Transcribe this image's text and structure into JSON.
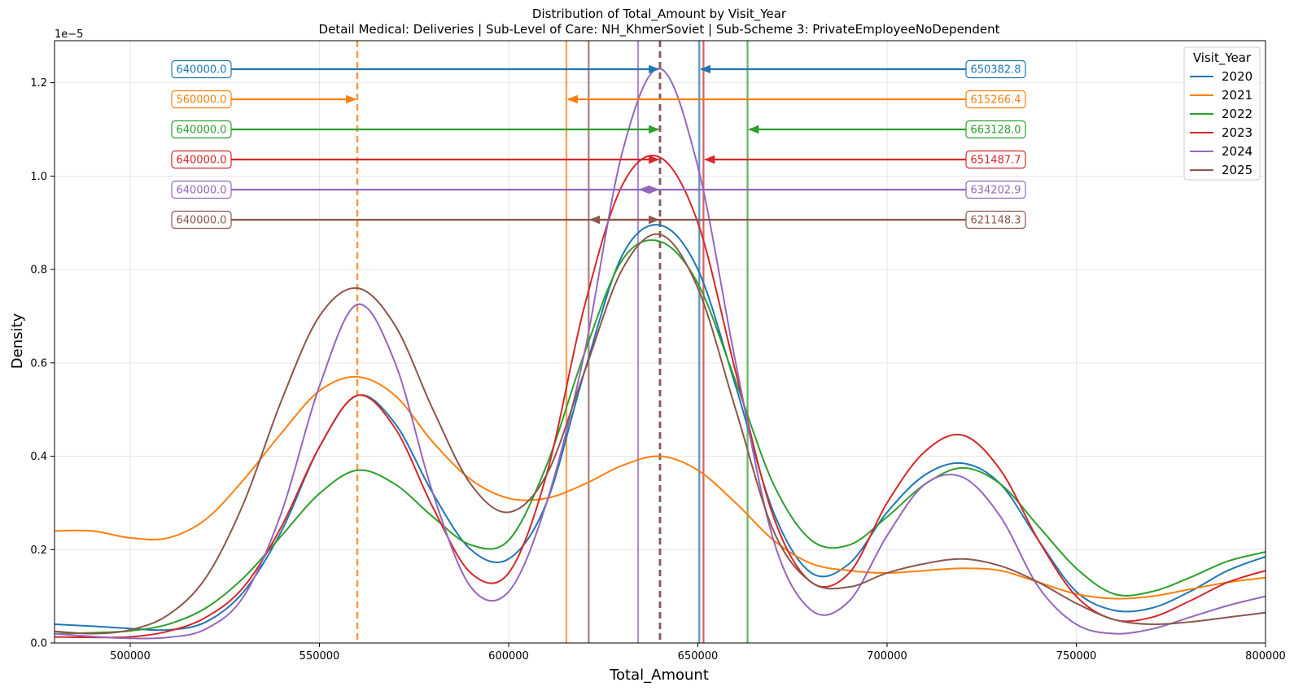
{
  "chart_data": {
    "type": "line",
    "title": "Distribution of Total_Amount by Visit_Year",
    "subtitle": "Detail Medical: Deliveries | Sub-Level of Care: NH_KhmerSoviet | Sub-Scheme 3: PrivateEmployeeNoDependent",
    "xlabel": "Total_Amount",
    "ylabel": "Density",
    "y_offset_text": "1e−5",
    "xlim": [
      480000,
      800000
    ],
    "ylim": [
      0,
      1.29
    ],
    "xticks": [
      500000,
      550000,
      600000,
      650000,
      700000,
      750000,
      800000
    ],
    "xtick_labels": [
      "500000",
      "550000",
      "600000",
      "650000",
      "700000",
      "750000",
      "800000"
    ],
    "yticks": [
      0.0,
      0.2,
      0.4,
      0.6,
      0.8,
      1.0,
      1.2
    ],
    "ytick_labels": [
      "0.0",
      "0.2",
      "0.4",
      "0.6",
      "0.8",
      "1.0",
      "1.2"
    ],
    "grid": true,
    "legend": {
      "title": "Visit_Year",
      "position": "top-right"
    },
    "series": [
      {
        "name": "2020",
        "color": "#1f77b4",
        "median": 640000.0,
        "mean": 650382.8,
        "median_label": "640000.0",
        "mean_label": "650382.8",
        "x": [
          480000,
          490000,
          500000,
          510000,
          520000,
          530000,
          540000,
          550000,
          560000,
          570000,
          580000,
          590000,
          600000,
          610000,
          620000,
          630000,
          640000,
          650000,
          660000,
          670000,
          680000,
          690000,
          700000,
          710000,
          720000,
          730000,
          740000,
          750000,
          760000,
          770000,
          780000,
          790000,
          800000
        ],
        "y": [
          0.04,
          0.036,
          0.031,
          0.028,
          0.045,
          0.11,
          0.24,
          0.42,
          0.53,
          0.47,
          0.32,
          0.2,
          0.18,
          0.3,
          0.58,
          0.83,
          0.895,
          0.8,
          0.55,
          0.28,
          0.15,
          0.17,
          0.28,
          0.36,
          0.385,
          0.34,
          0.22,
          0.11,
          0.07,
          0.075,
          0.11,
          0.155,
          0.185
        ]
      },
      {
        "name": "2021",
        "color": "#ff7f0e",
        "median": 560000.0,
        "mean": 615266.4,
        "median_label": "560000.0",
        "mean_label": "615266.4",
        "x": [
          480000,
          490000,
          500000,
          510000,
          520000,
          530000,
          540000,
          550000,
          560000,
          570000,
          580000,
          590000,
          600000,
          610000,
          620000,
          630000,
          640000,
          650000,
          660000,
          670000,
          680000,
          690000,
          700000,
          710000,
          720000,
          730000,
          740000,
          750000,
          760000,
          770000,
          780000,
          790000,
          800000
        ],
        "y": [
          0.24,
          0.24,
          0.225,
          0.225,
          0.265,
          0.35,
          0.45,
          0.54,
          0.57,
          0.53,
          0.43,
          0.35,
          0.31,
          0.31,
          0.34,
          0.38,
          0.4,
          0.37,
          0.3,
          0.22,
          0.17,
          0.155,
          0.15,
          0.155,
          0.16,
          0.155,
          0.13,
          0.105,
          0.095,
          0.1,
          0.115,
          0.13,
          0.14
        ]
      },
      {
        "name": "2022",
        "color": "#2ca02c",
        "median": 640000.0,
        "mean": 663128.0,
        "median_label": "640000.0",
        "mean_label": "663128.0",
        "x": [
          480000,
          490000,
          500000,
          510000,
          520000,
          530000,
          540000,
          550000,
          560000,
          570000,
          580000,
          590000,
          600000,
          610000,
          620000,
          630000,
          640000,
          650000,
          660000,
          670000,
          680000,
          690000,
          700000,
          710000,
          720000,
          730000,
          740000,
          750000,
          760000,
          770000,
          780000,
          790000,
          800000
        ],
        "y": [
          0.02,
          0.022,
          0.026,
          0.04,
          0.075,
          0.14,
          0.23,
          0.32,
          0.37,
          0.34,
          0.27,
          0.21,
          0.22,
          0.38,
          0.62,
          0.82,
          0.86,
          0.77,
          0.56,
          0.34,
          0.22,
          0.21,
          0.27,
          0.34,
          0.375,
          0.34,
          0.25,
          0.16,
          0.105,
          0.11,
          0.14,
          0.175,
          0.195
        ]
      },
      {
        "name": "2023",
        "color": "#d62728",
        "median": 640000.0,
        "mean": 651487.7,
        "median_label": "640000.0",
        "mean_label": "651487.7",
        "x": [
          480000,
          490000,
          500000,
          510000,
          520000,
          530000,
          540000,
          550000,
          560000,
          570000,
          580000,
          590000,
          600000,
          610000,
          620000,
          630000,
          640000,
          650000,
          660000,
          670000,
          680000,
          690000,
          700000,
          710000,
          720000,
          730000,
          740000,
          750000,
          760000,
          770000,
          780000,
          790000,
          800000
        ],
        "y": [
          0.013,
          0.012,
          0.013,
          0.025,
          0.055,
          0.12,
          0.25,
          0.42,
          0.53,
          0.46,
          0.29,
          0.15,
          0.15,
          0.36,
          0.72,
          0.98,
          1.04,
          0.9,
          0.58,
          0.27,
          0.13,
          0.15,
          0.3,
          0.41,
          0.445,
          0.37,
          0.22,
          0.1,
          0.05,
          0.055,
          0.09,
          0.13,
          0.155
        ]
      },
      {
        "name": "2024",
        "color": "#9467bd",
        "median": 640000.0,
        "mean": 634202.9,
        "median_label": "640000.0",
        "mean_label": "634202.9",
        "x": [
          480000,
          490000,
          500000,
          510000,
          520000,
          530000,
          540000,
          550000,
          560000,
          570000,
          580000,
          590000,
          600000,
          610000,
          620000,
          630000,
          640000,
          650000,
          660000,
          670000,
          680000,
          690000,
          700000,
          710000,
          720000,
          730000,
          740000,
          750000,
          760000,
          770000,
          780000,
          790000,
          800000
        ],
        "y": [
          0.02,
          0.014,
          0.01,
          0.012,
          0.03,
          0.1,
          0.28,
          0.55,
          0.725,
          0.6,
          0.32,
          0.12,
          0.11,
          0.3,
          0.62,
          1.05,
          1.23,
          1.02,
          0.6,
          0.22,
          0.07,
          0.09,
          0.23,
          0.34,
          0.355,
          0.27,
          0.12,
          0.04,
          0.02,
          0.03,
          0.055,
          0.08,
          0.1
        ]
      },
      {
        "name": "2025",
        "color": "#8c564b",
        "median": 640000.0,
        "mean": 621148.3,
        "median_label": "640000.0",
        "mean_label": "621148.3",
        "x": [
          480000,
          490000,
          500000,
          510000,
          520000,
          530000,
          540000,
          550000,
          560000,
          570000,
          580000,
          590000,
          600000,
          610000,
          620000,
          630000,
          640000,
          650000,
          660000,
          670000,
          680000,
          690000,
          700000,
          710000,
          720000,
          730000,
          740000,
          750000,
          760000,
          770000,
          780000,
          790000,
          800000
        ],
        "y": [
          0.025,
          0.02,
          0.028,
          0.06,
          0.14,
          0.3,
          0.52,
          0.7,
          0.76,
          0.68,
          0.5,
          0.34,
          0.28,
          0.36,
          0.58,
          0.8,
          0.875,
          0.76,
          0.5,
          0.24,
          0.13,
          0.12,
          0.15,
          0.17,
          0.18,
          0.165,
          0.13,
          0.085,
          0.05,
          0.04,
          0.045,
          0.055,
          0.065
        ]
      }
    ]
  }
}
